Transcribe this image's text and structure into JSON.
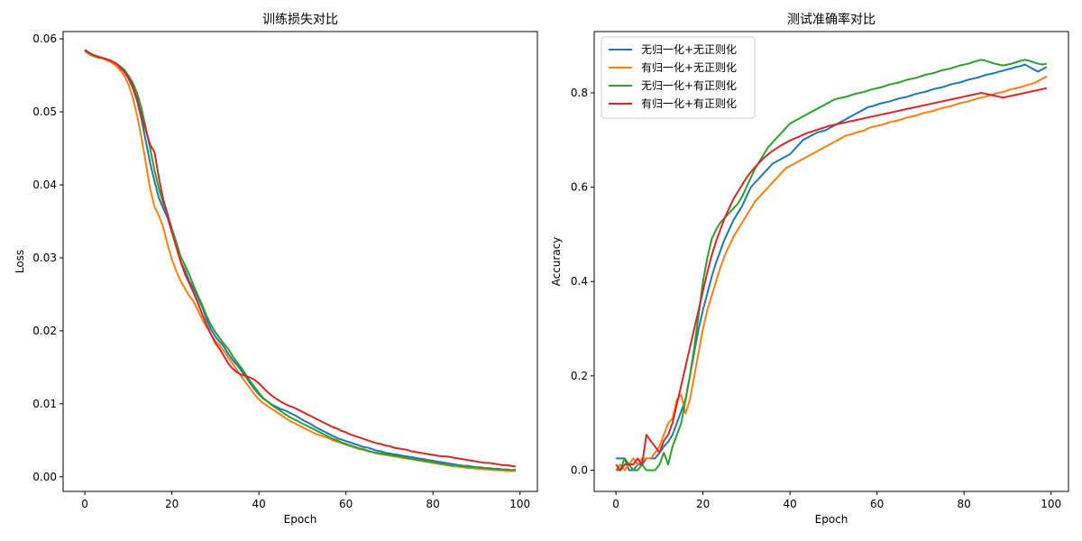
{
  "colors": {
    "blue": "#1f77b4",
    "orange": "#ff7f0e",
    "green": "#2ca02c",
    "red": "#d62728"
  },
  "chart_data": [
    {
      "type": "line",
      "title": "训练损失对比",
      "xlabel": "Epoch",
      "ylabel": "Loss",
      "xlim": [
        -5,
        104
      ],
      "ylim": [
        -0.002,
        0.061
      ],
      "xticks": [
        0,
        20,
        40,
        60,
        80,
        100
      ],
      "xtick_labels": [
        "0",
        "20",
        "40",
        "60",
        "80",
        "100"
      ],
      "yticks": [
        0.0,
        0.01,
        0.02,
        0.03,
        0.04,
        0.05,
        0.06
      ],
      "ytick_labels": [
        "0.00",
        "0.01",
        "0.02",
        "0.03",
        "0.04",
        "0.05",
        "0.06"
      ],
      "legend": false,
      "grid": false,
      "x_start": 0,
      "x_step": 1,
      "series": [
        {
          "color": "blue",
          "values": [
            0.0585,
            0.058,
            0.0577,
            0.0575,
            0.0574,
            0.0572,
            0.057,
            0.0566,
            0.0561,
            0.0555,
            0.0546,
            0.0533,
            0.0515,
            0.049,
            0.046,
            0.043,
            0.0405,
            0.0382,
            0.0368,
            0.0355,
            0.0335,
            0.0318,
            0.0295,
            0.0283,
            0.0268,
            0.0258,
            0.0245,
            0.0232,
            0.0215,
            0.0202,
            0.0192,
            0.0185,
            0.0178,
            0.0168,
            0.016,
            0.0153,
            0.0145,
            0.0137,
            0.0128,
            0.012,
            0.0113,
            0.0107,
            0.0103,
            0.0099,
            0.0096,
            0.0093,
            0.0091,
            0.0088,
            0.0085,
            0.0082,
            0.0078,
            0.0075,
            0.0072,
            0.0068,
            0.0065,
            0.0062,
            0.0059,
            0.0056,
            0.0053,
            0.0051,
            0.0049,
            0.0047,
            0.0045,
            0.0043,
            0.0041,
            0.004,
            0.0038,
            0.0036,
            0.0035,
            0.0033,
            0.0032,
            0.0031,
            0.003,
            0.0029,
            0.0028,
            0.0027,
            0.0026,
            0.0025,
            0.0024,
            0.0023,
            0.0022,
            0.0021,
            0.002,
            0.0019,
            0.0018,
            0.0017,
            0.0016,
            0.0015,
            0.0015,
            0.0014,
            0.0013,
            0.0013,
            0.0012,
            0.0012,
            0.0011,
            0.0011,
            0.001,
            0.001,
            0.0009,
            0.0009
          ]
        },
        {
          "color": "orange",
          "values": [
            0.0583,
            0.0579,
            0.0576,
            0.0574,
            0.0573,
            0.0571,
            0.0568,
            0.0564,
            0.0558,
            0.055,
            0.0538,
            0.052,
            0.0495,
            0.0465,
            0.043,
            0.0395,
            0.037,
            0.0358,
            0.0342,
            0.0318,
            0.0298,
            0.0282,
            0.0268,
            0.0258,
            0.0248,
            0.024,
            0.0228,
            0.0215,
            0.0205,
            0.0195,
            0.0186,
            0.018,
            0.0172,
            0.0163,
            0.0155,
            0.0146,
            0.0137,
            0.0129,
            0.0121,
            0.0113,
            0.0106,
            0.0101,
            0.0097,
            0.0093,
            0.0089,
            0.0085,
            0.0081,
            0.0077,
            0.0074,
            0.0071,
            0.0068,
            0.0065,
            0.0062,
            0.0059,
            0.0057,
            0.0055,
            0.0053,
            0.005,
            0.0048,
            0.0046,
            0.0044,
            0.0042,
            0.004,
            0.0038,
            0.0037,
            0.0035,
            0.0034,
            0.0032,
            0.0031,
            0.003,
            0.0029,
            0.0028,
            0.0027,
            0.0026,
            0.0025,
            0.0024,
            0.0023,
            0.0022,
            0.0021,
            0.002,
            0.0019,
            0.0018,
            0.0017,
            0.0016,
            0.0015,
            0.0014,
            0.0014,
            0.0013,
            0.0012,
            0.0012,
            0.0011,
            0.0011,
            0.001,
            0.001,
            0.0009,
            0.0009,
            0.0009,
            0.0008,
            0.0008,
            0.0008
          ]
        },
        {
          "color": "green",
          "values": [
            0.0584,
            0.058,
            0.0577,
            0.0575,
            0.0574,
            0.0572,
            0.057,
            0.0567,
            0.0563,
            0.0558,
            0.055,
            0.054,
            0.0526,
            0.0505,
            0.0478,
            0.045,
            0.042,
            0.0395,
            0.0375,
            0.036,
            0.034,
            0.0322,
            0.0302,
            0.029,
            0.0277,
            0.0262,
            0.0248,
            0.0235,
            0.022,
            0.0208,
            0.0198,
            0.019,
            0.0182,
            0.0175,
            0.0165,
            0.0157,
            0.0149,
            0.014,
            0.0131,
            0.0123,
            0.0115,
            0.0108,
            0.0103,
            0.0098,
            0.0094,
            0.009,
            0.0086,
            0.0082,
            0.0079,
            0.0076,
            0.0073,
            0.007,
            0.0067,
            0.0064,
            0.0061,
            0.0058,
            0.0055,
            0.0052,
            0.005,
            0.0047,
            0.0045,
            0.0043,
            0.0041,
            0.0039,
            0.0038,
            0.0036,
            0.0034,
            0.0033,
            0.0032,
            0.0031,
            0.003,
            0.0029,
            0.0028,
            0.0027,
            0.0026,
            0.0025,
            0.0024,
            0.0023,
            0.0022,
            0.0021,
            0.002,
            0.0019,
            0.0018,
            0.0017,
            0.0016,
            0.0016,
            0.0015,
            0.0014,
            0.0014,
            0.0013,
            0.0013,
            0.0012,
            0.0012,
            0.0011,
            0.0011,
            0.001,
            0.001,
            0.001,
            0.0009,
            0.001
          ]
        },
        {
          "color": "red",
          "values": [
            0.0585,
            0.0581,
            0.0578,
            0.0576,
            0.0574,
            0.0572,
            0.057,
            0.0567,
            0.0562,
            0.0556,
            0.0547,
            0.0535,
            0.0518,
            0.0495,
            0.0475,
            0.0455,
            0.0445,
            0.041,
            0.038,
            0.036,
            0.0335,
            0.0315,
            0.0295,
            0.0278,
            0.0265,
            0.0252,
            0.0238,
            0.0222,
            0.0208,
            0.0195,
            0.0183,
            0.0175,
            0.0165,
            0.0155,
            0.0148,
            0.0143,
            0.014,
            0.0138,
            0.0136,
            0.0133,
            0.0128,
            0.0122,
            0.0116,
            0.0111,
            0.0107,
            0.0103,
            0.01,
            0.0097,
            0.0095,
            0.0092,
            0.0089,
            0.0086,
            0.0083,
            0.008,
            0.0077,
            0.0074,
            0.0071,
            0.0068,
            0.0066,
            0.0063,
            0.0061,
            0.0058,
            0.0056,
            0.0054,
            0.0052,
            0.005,
            0.0048,
            0.0046,
            0.0045,
            0.0043,
            0.0042,
            0.004,
            0.0039,
            0.0038,
            0.0037,
            0.0035,
            0.0034,
            0.0033,
            0.0032,
            0.0031,
            0.003,
            0.0029,
            0.0028,
            0.0028,
            0.0027,
            0.0026,
            0.0025,
            0.0024,
            0.0023,
            0.0022,
            0.0021,
            0.002,
            0.0019,
            0.0019,
            0.0018,
            0.0017,
            0.0016,
            0.0016,
            0.0015,
            0.0014
          ]
        }
      ]
    },
    {
      "type": "line",
      "title": "测试准确率对比",
      "xlabel": "Epoch",
      "ylabel": "Accuracy",
      "xlim": [
        -5,
        104
      ],
      "ylim": [
        -0.045,
        0.93
      ],
      "xticks": [
        0,
        20,
        40,
        60,
        80,
        100
      ],
      "xtick_labels": [
        "0",
        "20",
        "40",
        "60",
        "80",
        "100"
      ],
      "yticks": [
        0.0,
        0.2,
        0.4,
        0.6,
        0.8
      ],
      "ytick_labels": [
        "0.0",
        "0.2",
        "0.4",
        "0.6",
        "0.8"
      ],
      "legend": true,
      "legend_position": "upper-left",
      "grid": false,
      "x_start": 0,
      "x_step": 1,
      "series": [
        {
          "name": "无归一化+无正则化",
          "color": "blue",
          "values": [
            0.025,
            0.025,
            0.025,
            0.0,
            0.0,
            0.012,
            0.012,
            0.025,
            0.025,
            0.025,
            0.037,
            0.05,
            0.06,
            0.075,
            0.1,
            0.125,
            0.15,
            0.2,
            0.25,
            0.3,
            0.34,
            0.375,
            0.41,
            0.44,
            0.465,
            0.49,
            0.51,
            0.53,
            0.545,
            0.56,
            0.58,
            0.6,
            0.61,
            0.62,
            0.63,
            0.64,
            0.65,
            0.655,
            0.66,
            0.665,
            0.67,
            0.68,
            0.69,
            0.7,
            0.705,
            0.71,
            0.715,
            0.718,
            0.72,
            0.725,
            0.73,
            0.735,
            0.74,
            0.745,
            0.75,
            0.755,
            0.76,
            0.765,
            0.77,
            0.772,
            0.775,
            0.778,
            0.78,
            0.782,
            0.785,
            0.788,
            0.79,
            0.792,
            0.795,
            0.798,
            0.8,
            0.802,
            0.805,
            0.808,
            0.81,
            0.812,
            0.815,
            0.818,
            0.82,
            0.822,
            0.825,
            0.828,
            0.83,
            0.832,
            0.835,
            0.838,
            0.84,
            0.842,
            0.845,
            0.847,
            0.85,
            0.852,
            0.855,
            0.857,
            0.86,
            0.855,
            0.85,
            0.845,
            0.85,
            0.855
          ]
        },
        {
          "name": "有归一化+无正则化",
          "color": "orange",
          "values": [
            0.0,
            0.012,
            0.0,
            0.012,
            0.025,
            0.012,
            0.025,
            0.025,
            0.025,
            0.037,
            0.05,
            0.075,
            0.1,
            0.11,
            0.15,
            0.16,
            0.12,
            0.15,
            0.2,
            0.25,
            0.3,
            0.34,
            0.37,
            0.4,
            0.43,
            0.455,
            0.475,
            0.495,
            0.51,
            0.525,
            0.54,
            0.555,
            0.57,
            0.58,
            0.59,
            0.6,
            0.61,
            0.62,
            0.63,
            0.64,
            0.645,
            0.65,
            0.655,
            0.66,
            0.665,
            0.67,
            0.675,
            0.68,
            0.685,
            0.69,
            0.695,
            0.7,
            0.705,
            0.71,
            0.712,
            0.715,
            0.718,
            0.72,
            0.725,
            0.728,
            0.73,
            0.732,
            0.735,
            0.738,
            0.74,
            0.742,
            0.745,
            0.748,
            0.75,
            0.752,
            0.755,
            0.758,
            0.76,
            0.762,
            0.765,
            0.768,
            0.77,
            0.772,
            0.775,
            0.778,
            0.78,
            0.782,
            0.785,
            0.788,
            0.79,
            0.792,
            0.795,
            0.798,
            0.8,
            0.802,
            0.805,
            0.808,
            0.81,
            0.812,
            0.815,
            0.818,
            0.82,
            0.825,
            0.83,
            0.835
          ]
        },
        {
          "name": "无归一化+有正则化",
          "color": "green",
          "values": [
            0.0,
            0.0,
            0.025,
            0.012,
            0.0,
            0.0,
            0.012,
            0.0,
            0.0,
            0.0,
            0.012,
            0.037,
            0.012,
            0.05,
            0.075,
            0.1,
            0.15,
            0.2,
            0.26,
            0.33,
            0.4,
            0.45,
            0.49,
            0.51,
            0.525,
            0.535,
            0.545,
            0.555,
            0.565,
            0.58,
            0.6,
            0.62,
            0.64,
            0.655,
            0.67,
            0.685,
            0.695,
            0.705,
            0.715,
            0.725,
            0.735,
            0.74,
            0.745,
            0.75,
            0.755,
            0.76,
            0.765,
            0.77,
            0.775,
            0.78,
            0.785,
            0.788,
            0.79,
            0.792,
            0.795,
            0.798,
            0.8,
            0.802,
            0.805,
            0.808,
            0.81,
            0.812,
            0.815,
            0.818,
            0.82,
            0.822,
            0.825,
            0.828,
            0.83,
            0.832,
            0.835,
            0.838,
            0.84,
            0.842,
            0.845,
            0.848,
            0.85,
            0.852,
            0.855,
            0.858,
            0.86,
            0.862,
            0.865,
            0.868,
            0.87,
            0.868,
            0.865,
            0.862,
            0.86,
            0.858,
            0.86,
            0.862,
            0.865,
            0.868,
            0.87,
            0.868,
            0.865,
            0.862,
            0.86,
            0.862
          ]
        },
        {
          "name": "有归一化+有正则化",
          "color": "red",
          "values": [
            0.012,
            0.0,
            0.012,
            0.012,
            0.012,
            0.025,
            0.012,
            0.075,
            0.062,
            0.05,
            0.037,
            0.062,
            0.075,
            0.1,
            0.14,
            0.18,
            0.22,
            0.26,
            0.3,
            0.34,
            0.38,
            0.42,
            0.455,
            0.485,
            0.51,
            0.535,
            0.555,
            0.575,
            0.59,
            0.605,
            0.62,
            0.632,
            0.643,
            0.653,
            0.662,
            0.67,
            0.677,
            0.683,
            0.689,
            0.694,
            0.699,
            0.703,
            0.707,
            0.711,
            0.715,
            0.718,
            0.721,
            0.724,
            0.727,
            0.73,
            0.732,
            0.734,
            0.736,
            0.738,
            0.74,
            0.742,
            0.744,
            0.746,
            0.748,
            0.75,
            0.752,
            0.754,
            0.756,
            0.758,
            0.76,
            0.762,
            0.764,
            0.766,
            0.768,
            0.77,
            0.772,
            0.774,
            0.776,
            0.778,
            0.78,
            0.782,
            0.784,
            0.786,
            0.788,
            0.79,
            0.792,
            0.794,
            0.796,
            0.798,
            0.8,
            0.798,
            0.796,
            0.794,
            0.792,
            0.79,
            0.792,
            0.794,
            0.796,
            0.798,
            0.8,
            0.802,
            0.804,
            0.806,
            0.808,
            0.81
          ]
        }
      ]
    }
  ]
}
